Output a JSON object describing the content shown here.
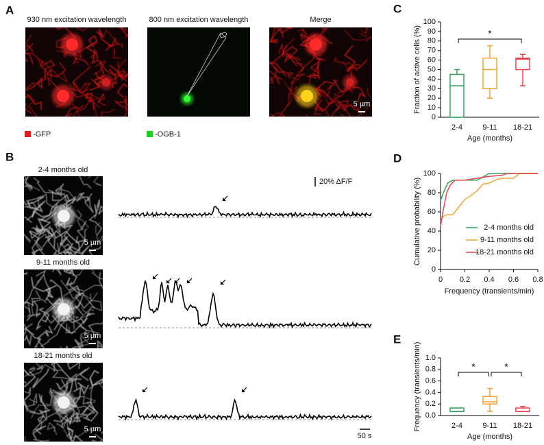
{
  "panel_labels": [
    "A",
    "B",
    "C",
    "D",
    "E"
  ],
  "panel_a": {
    "titles": [
      "930 nm excitation wavelength",
      "800 nm excitation wavelength",
      "Merge"
    ],
    "scale_bar": "5 µm",
    "legend": [
      "-GFP",
      "-OGB-1"
    ]
  },
  "panel_b": {
    "groups": [
      "2-4 months old",
      "9-11 months old",
      "18-21 months old"
    ],
    "scale_bar": "5 µm",
    "amplitude_scale": "20% ΔF/F",
    "time_scale": "50 s"
  },
  "chart_data": [
    {
      "type": "box",
      "categories": [
        "2-4",
        "9-11",
        "18-21"
      ],
      "xlabel": "Age (months)",
      "ylabel": "Fraction of active cells (%)",
      "ylim": [
        0,
        100
      ],
      "yticks": [
        0,
        10,
        20,
        30,
        40,
        50,
        60,
        70,
        80,
        90,
        100
      ],
      "significance": [
        "*"
      ],
      "boxes": [
        {
          "color": "#2ca25f",
          "low": 0,
          "q1": 0,
          "median": 33,
          "q3": 45,
          "high": 50
        },
        {
          "color": "#f5a533",
          "low": 20,
          "q1": 30,
          "median": 50,
          "q3": 62,
          "high": 75
        },
        {
          "color": "#e8434a",
          "low": 33,
          "q1": 50,
          "median": 61,
          "q3": 62,
          "high": 66
        }
      ]
    },
    {
      "type": "line",
      "xlabel": "Frequency (transients/min)",
      "ylabel": "Cumulative probability (%)",
      "xlim": [
        0,
        0.8
      ],
      "xticks": [
        0,
        0.2,
        0.4,
        0.6,
        0.8
      ],
      "ylim": [
        0,
        100
      ],
      "yticks": [
        0,
        20,
        40,
        60,
        80,
        100
      ],
      "legend": "lower right",
      "series": [
        {
          "name": "2-4 months old",
          "color": "#2ca25f",
          "x": [
            0,
            0.03,
            0.06,
            0.1,
            0.15,
            0.3,
            0.4,
            0.8
          ],
          "values": [
            72,
            82,
            90,
            93,
            93,
            93,
            100,
            100
          ]
        },
        {
          "name": "9-11 months old",
          "color": "#f5a533",
          "x": [
            0,
            0.02,
            0.05,
            0.1,
            0.15,
            0.2,
            0.25,
            0.3,
            0.35,
            0.4,
            0.45,
            0.5,
            0.6,
            0.65,
            0.8
          ],
          "values": [
            50,
            55,
            57,
            57,
            65,
            73,
            77,
            82,
            89,
            90,
            93,
            95,
            95,
            100,
            100
          ]
        },
        {
          "name": "18-21 months old",
          "color": "#e8434a",
          "x": [
            0,
            0.02,
            0.05,
            0.08,
            0.12,
            0.2,
            0.3,
            0.4,
            0.5,
            0.55,
            0.8
          ],
          "values": [
            45,
            60,
            80,
            88,
            93,
            93,
            95,
            97,
            98,
            100,
            100
          ]
        }
      ]
    },
    {
      "type": "box",
      "categories": [
        "2-4",
        "9-11",
        "18-21"
      ],
      "xlabel": "Age (months)",
      "ylabel": "Frequency (transients/min)",
      "ylim": [
        0,
        1
      ],
      "yticks": [
        {
          "value": 0,
          "label": "0.0"
        },
        0.2,
        0.4,
        0.6,
        0.8,
        {
          "value": 1,
          "label": "1.0"
        }
      ],
      "significance": [
        "*",
        "*"
      ],
      "boxes": [
        {
          "color": "#2ca25f",
          "low": 0.07,
          "q1": 0.07,
          "median": 0.07,
          "q3": 0.13,
          "high": 0.13
        },
        {
          "color": "#f5a533",
          "low": 0.07,
          "q1": 0.2,
          "median": 0.24,
          "q3": 0.33,
          "high": 0.47
        },
        {
          "color": "#e8434a",
          "low": 0.07,
          "q1": 0.07,
          "median": 0.07,
          "q3": 0.13,
          "high": 0.16
        }
      ]
    }
  ]
}
